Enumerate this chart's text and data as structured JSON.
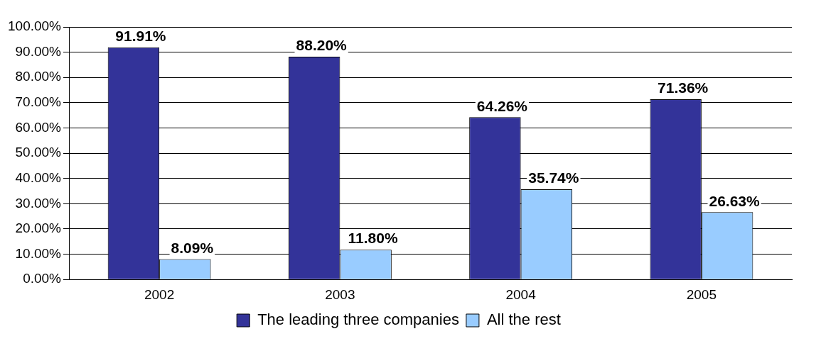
{
  "chart_data": {
    "type": "bar",
    "categories": [
      "2002",
      "2003",
      "2004",
      "2005"
    ],
    "series": [
      {
        "name": "The leading three companies",
        "color": "#333399",
        "values": [
          91.91,
          88.2,
          64.26,
          71.36
        ],
        "value_labels": [
          "91.91%",
          "88.20%",
          "64.26%",
          "71.36%"
        ]
      },
      {
        "name": "All the rest",
        "color": "#99ccff",
        "values": [
          8.09,
          11.8,
          35.74,
          26.63
        ],
        "value_labels": [
          "8.09%",
          "11.80%",
          "35.74%",
          "26.63%"
        ]
      }
    ],
    "ylim": [
      0,
      100
    ],
    "yticks": [
      {
        "value": 0,
        "label": "0.00%"
      },
      {
        "value": 10,
        "label": "10.00%"
      },
      {
        "value": 20,
        "label": "20.00%"
      },
      {
        "value": 30,
        "label": "30.00%"
      },
      {
        "value": 40,
        "label": "40.00%"
      },
      {
        "value": 50,
        "label": "50.00%"
      },
      {
        "value": 60,
        "label": "60.00%"
      },
      {
        "value": 70,
        "label": "70.00%"
      },
      {
        "value": 80,
        "label": "80.00%"
      },
      {
        "value": 90,
        "label": "90.00%"
      },
      {
        "value": 100,
        "label": "100.00%"
      }
    ],
    "grid": "y",
    "legend": "bottom"
  }
}
